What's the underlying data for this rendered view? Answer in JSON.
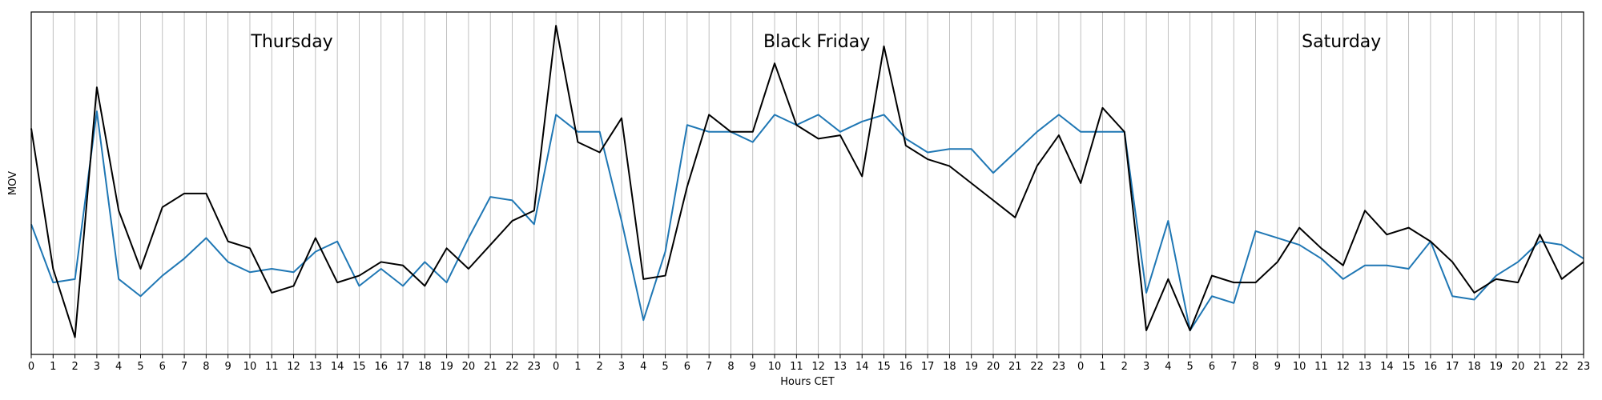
{
  "chart_data": {
    "type": "line",
    "title": "",
    "xlabel": "Hours CET",
    "ylabel": "MOV",
    "grid": "vertical",
    "legend": "none",
    "x_ticks": [
      "0",
      "1",
      "2",
      "3",
      "4",
      "5",
      "6",
      "7",
      "8",
      "9",
      "10",
      "11",
      "12",
      "13",
      "14",
      "15",
      "16",
      "17",
      "18",
      "19",
      "20",
      "21",
      "22",
      "23",
      "0",
      "1",
      "2",
      "3",
      "4",
      "5",
      "6",
      "7",
      "8",
      "9",
      "10",
      "11",
      "12",
      "13",
      "14",
      "15",
      "16",
      "17",
      "18",
      "19",
      "20",
      "21",
      "22",
      "23",
      "0",
      "1",
      "2",
      "3",
      "4",
      "5",
      "6",
      "7",
      "8",
      "9",
      "10",
      "11",
      "12",
      "13",
      "14",
      "15",
      "16",
      "17",
      "18",
      "19",
      "20",
      "21",
      "22",
      "23"
    ],
    "annotations": [
      {
        "text": "Thursday",
        "x_index": 12
      },
      {
        "text": "Black Friday",
        "x_index": 36
      },
      {
        "text": "Saturday",
        "x_index": 60
      }
    ],
    "ylim": [
      0,
      1
    ],
    "series": [
      {
        "color": "#000000",
        "values": [
          0.66,
          0.25,
          0.05,
          0.78,
          0.42,
          0.25,
          0.43,
          0.47,
          0.47,
          0.33,
          0.31,
          0.18,
          0.2,
          0.34,
          0.21,
          0.23,
          0.27,
          0.26,
          0.2,
          0.31,
          0.25,
          0.32,
          0.39,
          0.42,
          0.96,
          0.62,
          0.59,
          0.69,
          0.22,
          0.23,
          0.49,
          0.7,
          0.65,
          0.65,
          0.85,
          0.67,
          0.63,
          0.64,
          0.52,
          0.9,
          0.61,
          0.57,
          0.55,
          0.5,
          0.45,
          0.4,
          0.55,
          0.64,
          0.5,
          0.72,
          0.65,
          0.07,
          0.22,
          0.07,
          0.23,
          0.21,
          0.21,
          0.27,
          0.37,
          0.31,
          0.26,
          0.42,
          0.35,
          0.37,
          0.33,
          0.27,
          0.18,
          0.22,
          0.21,
          0.35,
          0.22,
          0.27
        ]
      },
      {
        "color": "#1f77b4",
        "values": [
          0.38,
          0.21,
          0.22,
          0.71,
          0.22,
          0.17,
          0.23,
          0.28,
          0.34,
          0.27,
          0.24,
          0.25,
          0.24,
          0.3,
          0.33,
          0.2,
          0.25,
          0.2,
          0.27,
          0.21,
          0.34,
          0.46,
          0.45,
          0.38,
          0.7,
          0.65,
          0.65,
          0.39,
          0.1,
          0.3,
          0.67,
          0.65,
          0.65,
          0.62,
          0.7,
          0.67,
          0.7,
          0.65,
          0.68,
          0.7,
          0.63,
          0.59,
          0.6,
          0.6,
          0.53,
          0.59,
          0.65,
          0.7,
          0.65,
          0.65,
          0.65,
          0.18,
          0.39,
          0.07,
          0.17,
          0.15,
          0.36,
          0.34,
          0.32,
          0.28,
          0.22,
          0.26,
          0.26,
          0.25,
          0.33,
          0.17,
          0.16,
          0.23,
          0.27,
          0.33,
          0.32,
          0.28
        ]
      }
    ]
  }
}
